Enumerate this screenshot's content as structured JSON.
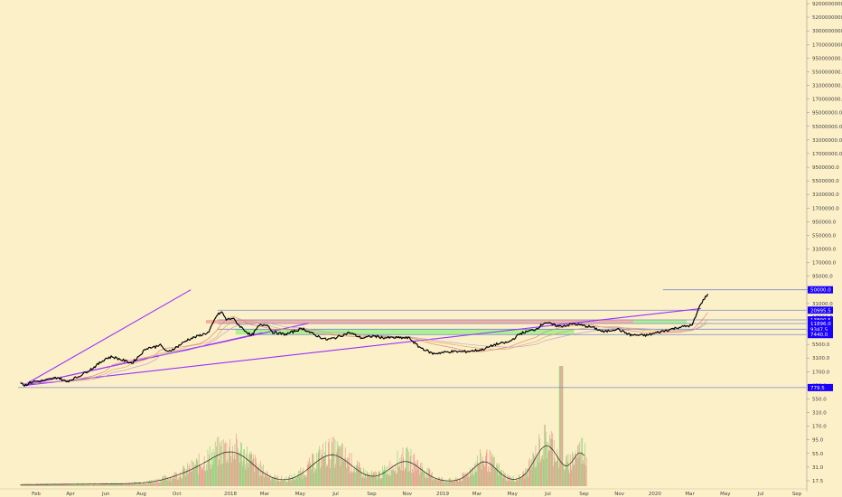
{
  "chart_data": {
    "type": "line",
    "title": "",
    "xlabel": "",
    "ylabel": "",
    "log_scale": true,
    "grid": false,
    "background_color": "#fcf0c8",
    "price_line_color": "#000000",
    "trendline_color": "#9b30ff",
    "axis_label_bg_color": "#1a00ff",
    "x_tick_labels": [
      {
        "label": "Feb",
        "date": "2017-02-01"
      },
      {
        "label": "Apr",
        "date": "2017-04-01"
      },
      {
        "label": "Jun",
        "date": "2017-06-01"
      },
      {
        "label": "Aug",
        "date": "2017-08-01"
      },
      {
        "label": "Oct",
        "date": "2017-10-01"
      },
      {
        "label": "2018",
        "date": "2018-01-01"
      },
      {
        "label": "Mar",
        "date": "2018-03-01"
      },
      {
        "label": "May",
        "date": "2018-05-01"
      },
      {
        "label": "Jul",
        "date": "2018-07-01"
      },
      {
        "label": "Sep",
        "date": "2018-09-01"
      },
      {
        "label": "Nov",
        "date": "2018-11-01"
      },
      {
        "label": "2019",
        "date": "2019-01-01"
      },
      {
        "label": "Mar",
        "date": "2019-03-01"
      },
      {
        "label": "May",
        "date": "2019-05-01"
      },
      {
        "label": "Jul",
        "date": "2019-07-01"
      },
      {
        "label": "Sep",
        "date": "2019-09-01"
      },
      {
        "label": "Nov",
        "date": "2019-11-01"
      },
      {
        "label": "2020",
        "date": "2020-01-01"
      },
      {
        "label": "Mar",
        "date": "2020-03-01"
      },
      {
        "label": "May",
        "date": "2020-05-01"
      },
      {
        "label": "Jul",
        "date": "2020-07-01"
      },
      {
        "label": "Sep",
        "date": "2020-09-01"
      }
    ],
    "y_tick_labels": [
      "9200000000.0",
      "5200000000.0",
      "3000000000.0",
      "1700000000.0",
      "950000000.0",
      "550000000.0",
      "310000000.0",
      "170000000.0",
      "95000000.0",
      "55000000.0",
      "31000000.0",
      "17000000.0",
      "9500000.0",
      "5500000.0",
      "3100000.0",
      "1700000.0",
      "950000.0",
      "550000.0",
      "310000.0",
      "170000.0",
      "95000.0",
      "55000.0",
      "31000.0",
      "17000.0",
      "9500.0",
      "5500.0",
      "3100.0",
      "1700.0",
      "950.0",
      "550.0",
      "310.0",
      "170.0",
      "95.0",
      "55.0",
      "31.0",
      "17.5"
    ],
    "price_tags": [
      {
        "label": "50000.0",
        "value": 50000
      },
      {
        "label": "20995.5",
        "value": 20995.5
      },
      {
        "label": "13890.5",
        "value": 13890.5
      },
      {
        "label": "11896.0",
        "value": 11896
      },
      {
        "label": "9347.5",
        "value": 9347.5
      },
      {
        "label": "7440.0",
        "value": 7440
      },
      {
        "label": "779.5",
        "value": 779.5
      }
    ],
    "series": [
      {
        "type": "line",
        "x": [
          "2017-01-05",
          "2017-01-12",
          "2017-01-25",
          "2017-02-15",
          "2017-03-10",
          "2017-03-25",
          "2017-04-15",
          "2017-05-10",
          "2017-06-01",
          "2017-06-12",
          "2017-07-05",
          "2017-07-16",
          "2017-08-10",
          "2017-08-25",
          "2017-09-01",
          "2017-09-15",
          "2017-10-01",
          "2017-10-20",
          "2017-11-10",
          "2017-11-25",
          "2017-12-08",
          "2017-12-17",
          "2017-12-25",
          "2018-01-05",
          "2018-01-16",
          "2018-02-06",
          "2018-02-20",
          "2018-03-05",
          "2018-03-15",
          "2018-04-06",
          "2018-05-05",
          "2018-05-25",
          "2018-06-15",
          "2018-06-29",
          "2018-07-25",
          "2018-08-15",
          "2018-09-05",
          "2018-09-20",
          "2018-10-15",
          "2018-11-05",
          "2018-11-20",
          "2018-12-15",
          "2019-01-15",
          "2019-02-10",
          "2019-03-10",
          "2019-04-02",
          "2019-04-25",
          "2019-05-15",
          "2019-06-10",
          "2019-06-26",
          "2019-07-20",
          "2019-08-15",
          "2019-09-15",
          "2019-10-05",
          "2019-10-28",
          "2019-11-20",
          "2019-12-18",
          "2020-01-15",
          "2020-02-12",
          "2020-03-05",
          "2020-03-20",
          "2020-04-01"
        ],
        "values": [
          1000,
          850,
          1000,
          1050,
          1200,
          1000,
          1250,
          1800,
          2700,
          2900,
          2400,
          2200,
          4200,
          4400,
          4900,
          3500,
          4400,
          6000,
          7200,
          8200,
          16500,
          19500,
          14000,
          15000,
          11000,
          7000,
          11000,
          11500,
          8200,
          7500,
          9700,
          7400,
          6000,
          6400,
          8100,
          6400,
          7000,
          6500,
          6500,
          6400,
          4500,
          3300,
          3600,
          3600,
          3900,
          4900,
          5400,
          7800,
          9300,
          12500,
          10500,
          11700,
          10200,
          8300,
          9500,
          7300,
          7200,
          8600,
          10200,
          11000,
          28000,
          42000
        ]
      }
    ],
    "volume": {
      "type": "bar",
      "note_unit": "volume",
      "x_start": "2017-01-05",
      "x_end": "2019-09-05",
      "up_color": "#8ed17c",
      "down_color": "#e89a8c",
      "peak_value": 1500,
      "min_label_value": 17.5
    },
    "trendlines": [
      {
        "x1": "2017-01-10",
        "y1": 850,
        "x2": "2017-10-25",
        "y2": 50000
      },
      {
        "x1": "2017-01-10",
        "y1": 850,
        "x2": "2018-05-15",
        "y2": 12000
      },
      {
        "x1": "2017-01-10",
        "y1": 850,
        "x2": "2018-02-25",
        "y2": 8000
      },
      {
        "x1": "2017-01-10",
        "y1": 850,
        "x2": "2020-03-20",
        "y2": 22500
      }
    ],
    "horizontal_lines": [
      {
        "value": 50000,
        "x_start": "2020-01-15"
      },
      {
        "value": 20995.5,
        "x_start": "2017-12-10"
      },
      {
        "value": 13890.5,
        "x_start": "2017-12-10"
      },
      {
        "value": 11896,
        "x_start": "2017-12-10"
      },
      {
        "value": 9347.5,
        "x_start": "2017-12-10"
      },
      {
        "value": 7440,
        "x_start": "2018-02-01"
      },
      {
        "value": 779.5,
        "x_start": "2017-01-01"
      }
    ],
    "zones": [
      {
        "color": "#f4a79a",
        "x1": "2017-11-20",
        "x2": "2019-11-25",
        "y_low": 11896,
        "y_high": 13890.5
      },
      {
        "color": "#9df28a",
        "x1": "2018-01-10",
        "x2": "2019-08-15",
        "y_low": 7440,
        "y_high": 9347.5
      },
      {
        "color": "#9df28a",
        "x1": "2019-11-25",
        "x2": "2020-02-25",
        "y_low": 11896,
        "y_high": 13890.5
      }
    ]
  }
}
